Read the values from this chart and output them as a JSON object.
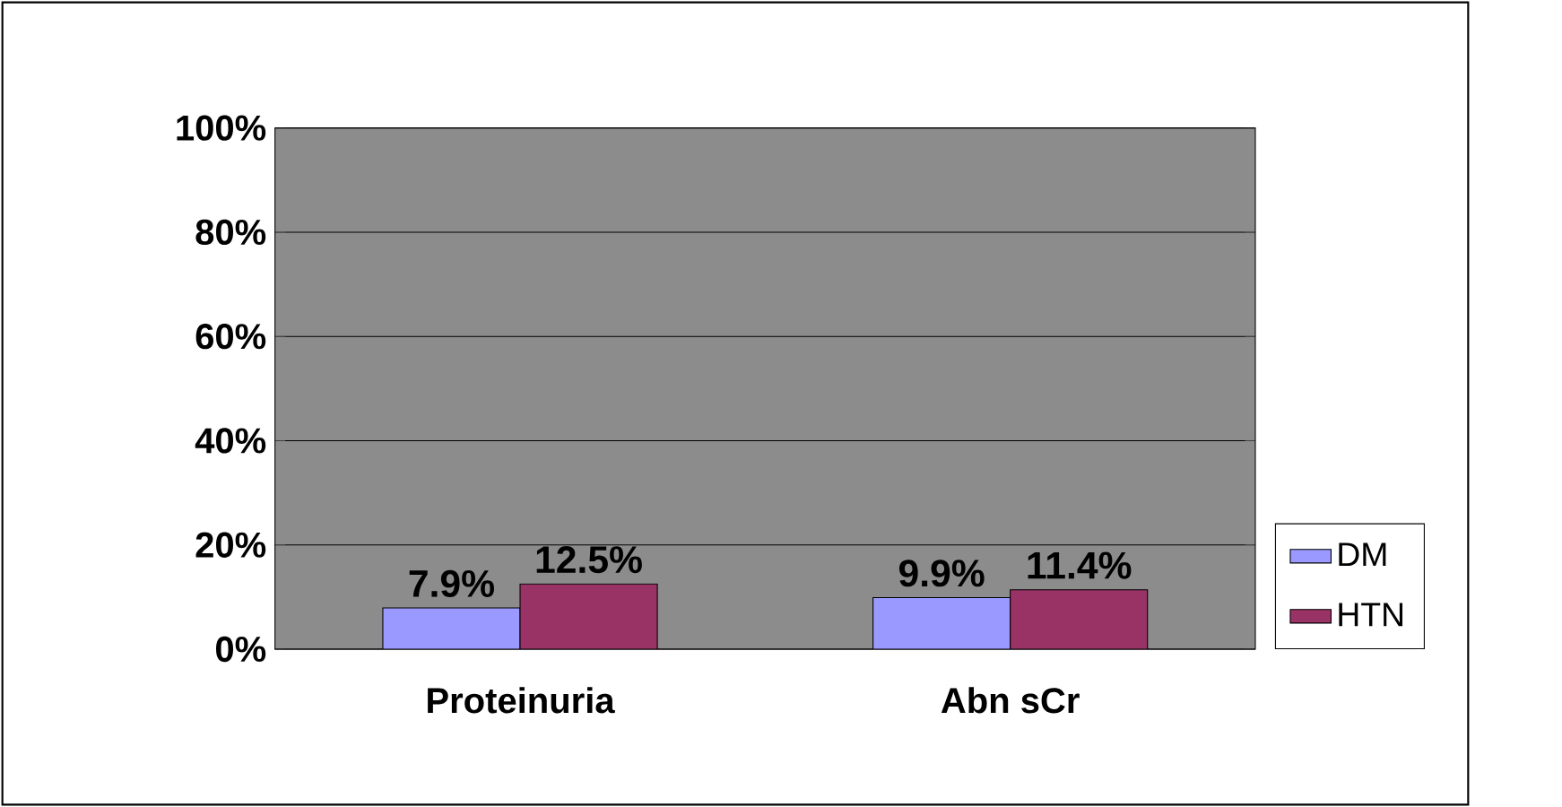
{
  "chart_data": {
    "type": "bar",
    "categories": [
      "Proteinuria",
      "Abn sCr"
    ],
    "series": [
      {
        "name": "DM",
        "color": "#9999ff",
        "values": [
          7.9,
          9.9
        ],
        "value_labels": [
          "7.9%",
          "9.9%"
        ]
      },
      {
        "name": "HTN",
        "color": "#993366",
        "values": [
          12.5,
          11.4
        ],
        "value_labels": [
          "12.5%",
          "11.4%"
        ]
      }
    ],
    "ylim": [
      0,
      100
    ],
    "yticks": [
      {
        "value": 0,
        "label": "0%"
      },
      {
        "value": 20,
        "label": "20%"
      },
      {
        "value": 40,
        "label": "40%"
      },
      {
        "value": 60,
        "label": "60%"
      },
      {
        "value": 80,
        "label": "80%"
      },
      {
        "value": 100,
        "label": "100%"
      }
    ],
    "grid": "y",
    "legend": "right"
  }
}
